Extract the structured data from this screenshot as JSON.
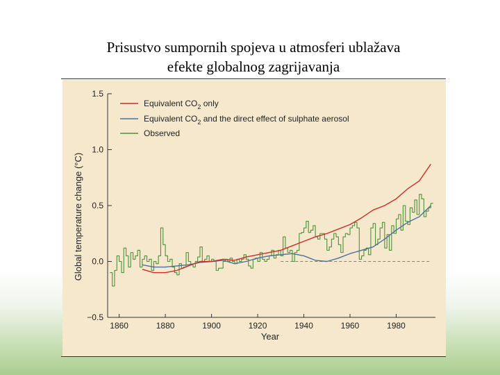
{
  "slide": {
    "title_line1": "Prisustvo sumpornih spojeva u atmosferi ublažava",
    "title_line2": "efekte globalnog zagrijavanja"
  },
  "chart_data": {
    "type": "line",
    "xlabel": "Year",
    "ylabel": "Global temperature change (°C)",
    "xlim": [
      1855,
      1997
    ],
    "ylim": [
      -0.5,
      1.5
    ],
    "xticks": [
      1860,
      1880,
      1900,
      1920,
      1940,
      1960,
      1980
    ],
    "yticks": [
      -0.5,
      0.0,
      0.5,
      1.0,
      1.5
    ],
    "yticks_labels": [
      "−0.5",
      "0.0",
      "0.5",
      "1.0",
      "1.5"
    ],
    "reference_line": 0.0,
    "grid": false,
    "legend_position": "top-left",
    "series": [
      {
        "name": "Equivalent CO2 only",
        "name_parts": {
          "pre": "Equivalent CO",
          "sub": "2",
          "post": " only"
        },
        "color": "#cc2b2b",
        "x": [
          1870,
          1875,
          1880,
          1885,
          1890,
          1895,
          1900,
          1905,
          1910,
          1915,
          1920,
          1925,
          1930,
          1935,
          1940,
          1945,
          1950,
          1955,
          1960,
          1965,
          1970,
          1975,
          1980,
          1985,
          1990,
          1995
        ],
        "y": [
          -0.07,
          -0.1,
          -0.1,
          -0.08,
          -0.04,
          0.0,
          0.0,
          0.02,
          0.01,
          0.04,
          0.06,
          0.08,
          0.1,
          0.14,
          0.18,
          0.22,
          0.25,
          0.29,
          0.33,
          0.39,
          0.46,
          0.5,
          0.56,
          0.65,
          0.72,
          0.87
        ]
      },
      {
        "name": "Equivalent CO2 and the direct effect of sulphate aerosol",
        "name_parts": {
          "pre": "Equivalent CO",
          "sub": "2",
          "post": " and the direct effect of sulphate aerosol"
        },
        "color": "#4a6f9e",
        "x": [
          1870,
          1875,
          1880,
          1885,
          1890,
          1895,
          1900,
          1905,
          1910,
          1915,
          1920,
          1925,
          1930,
          1935,
          1940,
          1945,
          1950,
          1955,
          1960,
          1965,
          1970,
          1975,
          1980,
          1985,
          1990,
          1995
        ],
        "y": [
          -0.03,
          -0.05,
          -0.05,
          -0.04,
          -0.03,
          -0.01,
          0.0,
          0.01,
          -0.02,
          0.0,
          0.03,
          0.05,
          0.06,
          0.07,
          0.05,
          0.01,
          0.0,
          0.03,
          0.07,
          0.1,
          0.13,
          0.2,
          0.28,
          0.35,
          0.4,
          0.5
        ]
      },
      {
        "name": "Observed",
        "color": "#4e8f3a",
        "step": true,
        "x": [
          1856,
          1857,
          1858,
          1859,
          1860,
          1861,
          1862,
          1863,
          1864,
          1865,
          1866,
          1867,
          1868,
          1869,
          1870,
          1871,
          1872,
          1873,
          1874,
          1875,
          1876,
          1877,
          1878,
          1879,
          1880,
          1881,
          1882,
          1883,
          1884,
          1885,
          1886,
          1887,
          1888,
          1889,
          1890,
          1891,
          1892,
          1893,
          1894,
          1895,
          1896,
          1897,
          1898,
          1899,
          1900,
          1901,
          1902,
          1903,
          1904,
          1905,
          1906,
          1907,
          1908,
          1909,
          1910,
          1911,
          1912,
          1913,
          1914,
          1915,
          1916,
          1917,
          1918,
          1919,
          1920,
          1921,
          1922,
          1923,
          1924,
          1925,
          1926,
          1927,
          1928,
          1929,
          1930,
          1931,
          1932,
          1933,
          1934,
          1935,
          1936,
          1937,
          1938,
          1939,
          1940,
          1941,
          1942,
          1943,
          1944,
          1945,
          1946,
          1947,
          1948,
          1949,
          1950,
          1951,
          1952,
          1953,
          1954,
          1955,
          1956,
          1957,
          1958,
          1959,
          1960,
          1961,
          1962,
          1963,
          1964,
          1965,
          1966,
          1967,
          1968,
          1969,
          1970,
          1971,
          1972,
          1973,
          1974,
          1975,
          1976,
          1977,
          1978,
          1979,
          1980,
          1981,
          1982,
          1983,
          1984,
          1985,
          1986,
          1987,
          1988,
          1989,
          1990,
          1991,
          1992,
          1993,
          1994,
          1995
        ],
        "y": [
          -0.1,
          -0.22,
          -0.08,
          0.05,
          0.0,
          -0.1,
          0.12,
          0.05,
          -0.05,
          0.08,
          0.02,
          0.05,
          0.1,
          -0.05,
          0.02,
          0.05,
          0.0,
          0.02,
          -0.08,
          0.0,
          -0.02,
          0.05,
          0.3,
          0.15,
          0.05,
          0.0,
          0.02,
          -0.05,
          -0.1,
          -0.12,
          -0.02,
          -0.06,
          -0.05,
          0.08,
          0.0,
          -0.03,
          -0.05,
          0.0,
          0.04,
          0.13,
          0.0,
          0.02,
          0.05,
          0.0,
          0.02,
          0.0,
          -0.08,
          -0.06,
          -0.06,
          0.0,
          0.02,
          0.0,
          0.03,
          0.0,
          -0.02,
          0.02,
          0.0,
          0.02,
          0.06,
          0.02,
          -0.04,
          -0.06,
          0.02,
          0.03,
          0.0,
          0.08,
          0.02,
          0.0,
          0.02,
          0.05,
          0.1,
          0.03,
          0.06,
          0.1,
          0.05,
          0.22,
          0.12,
          0.08,
          0.1,
          0.0,
          0.08,
          0.1,
          0.25,
          0.26,
          0.3,
          0.36,
          0.26,
          0.28,
          0.32,
          0.22,
          0.2,
          0.25,
          0.25,
          0.2,
          0.1,
          0.13,
          0.2,
          0.25,
          0.22,
          0.15,
          0.08,
          0.22,
          0.25,
          0.24,
          0.3,
          0.32,
          0.35,
          0.3,
          0.02,
          0.05,
          0.1,
          0.12,
          0.06,
          0.3,
          0.34,
          0.15,
          0.2,
          0.3,
          0.35,
          0.12,
          0.24,
          0.1,
          0.32,
          0.25,
          0.38,
          0.42,
          0.28,
          0.5,
          0.36,
          0.33,
          0.48,
          0.44,
          0.55,
          0.42,
          0.6,
          0.56,
          0.4,
          0.45,
          0.48,
          0.52
        ]
      }
    ]
  }
}
